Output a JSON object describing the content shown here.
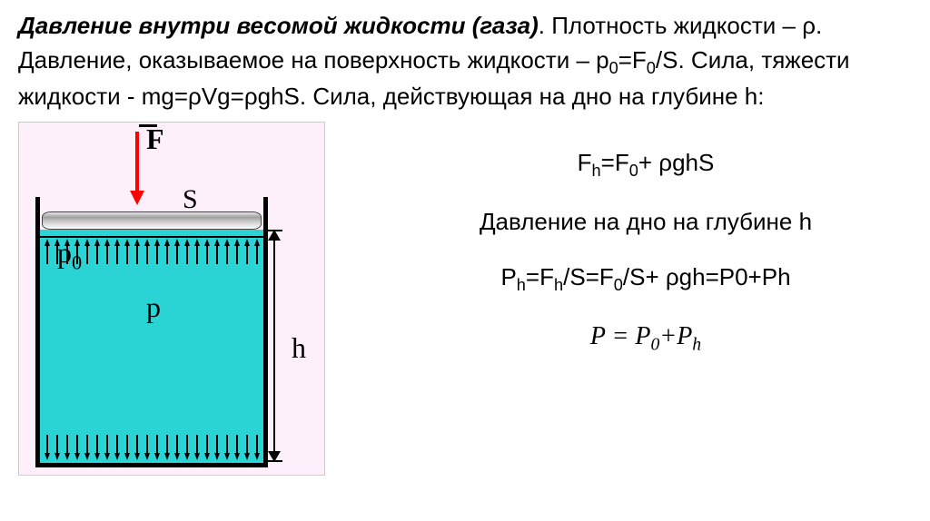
{
  "header": {
    "title": "Давление внутри весомой жидкости (газа)",
    "text1": ". Плотность жидкости – ρ. Давление, оказываемое на поверхность жидкости – p",
    "text1_sub": "0",
    "text2": "=F",
    "text2_sub": "0",
    "text3": "/S. Сила, тяжести жидкости - mg=ρVg=ρghS. Сила, действующая на дно на глубине h:"
  },
  "diagram": {
    "force_label": "F",
    "surface_label": "S",
    "p0_label": "p",
    "p0_sub": "0",
    "p_label": "p",
    "h_label": "h",
    "liquid_color": "#2ad4d4",
    "bg_color": "#fdf0fb",
    "arrow_color": "#ff0000"
  },
  "formulas": {
    "f1_a": "F",
    "f1_sub1": "h",
    "f1_b": "=F",
    "f1_sub2": "0",
    "f1_c": "+ ρghS",
    "f2": "Давление на дно на глубине h",
    "f3_a": "P",
    "f3_sub1": "h",
    "f3_b": "=F",
    "f3_sub2": "h",
    "f3_c": "/S=F",
    "f3_sub3": "0",
    "f3_d": "/S+ ρgh=P0+Ph",
    "f4_a": "P = P",
    "f4_sub1": "0",
    "f4_b": "+P",
    "f4_sub2": "h"
  }
}
